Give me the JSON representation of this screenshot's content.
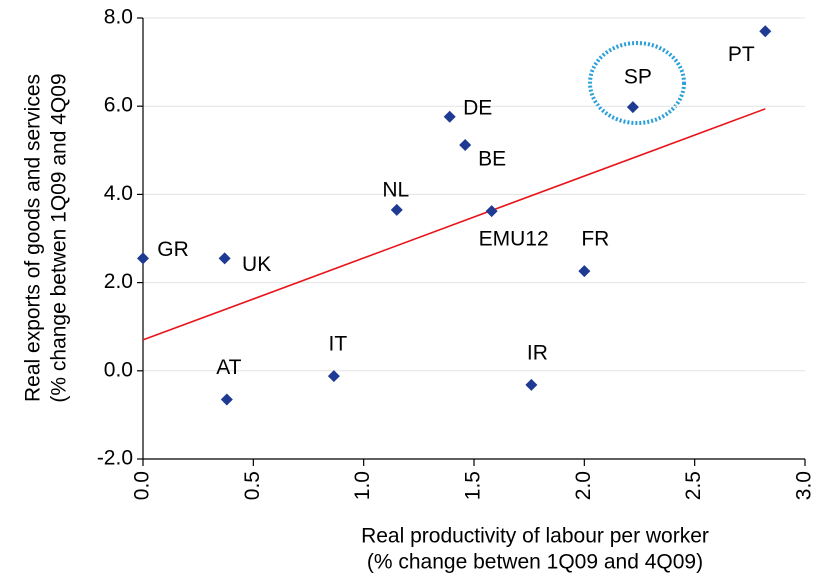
{
  "chart_data": {
    "type": "scatter",
    "x_label": [
      "Real productivity of labour per worker",
      "(% change betwen 1Q09 and 4Q09)"
    ],
    "y_label": [
      "Real exports of goods and services",
      "(% change betwen 1Q09 and 4Q09"
    ],
    "labels": [
      "GR",
      "UK",
      "AT",
      "IT",
      "NL",
      "DE",
      "BE",
      "EMU12",
      "IR",
      "FR",
      "SP",
      "PT"
    ],
    "x": [
      0.0,
      0.37,
      0.38,
      0.865,
      1.15,
      1.39,
      1.46,
      1.58,
      1.76,
      2.0,
      2.22,
      2.82
    ],
    "y": [
      2.55,
      2.55,
      -0.65,
      -0.12,
      3.65,
      5.76,
      5.12,
      3.62,
      -0.32,
      2.26,
      5.98,
      7.7
    ],
    "color": "#1f3a93",
    "trend_line": {
      "x": [
        0.0,
        2.82
      ],
      "y": [
        0.7,
        5.94
      ],
      "color": "#e8141a"
    },
    "xlim": [
      0,
      3
    ],
    "ylim": [
      -2,
      8
    ],
    "xticks": [
      {
        "value": 0,
        "label": "0.0"
      },
      {
        "value": 0.5,
        "label": "0.5"
      },
      {
        "value": 1,
        "label": "1.0"
      },
      1.5,
      {
        "value": 2,
        "label": "2.0"
      },
      2.5,
      {
        "value": 3,
        "label": "3.0"
      }
    ],
    "yticks": [
      {
        "value": -2,
        "label": "-2.0"
      },
      {
        "value": 0,
        "label": "0.0"
      },
      {
        "value": 2,
        "label": "2.0"
      },
      {
        "value": 4,
        "label": "4.0"
      },
      {
        "value": 6,
        "label": "6.0"
      },
      {
        "value": 8,
        "label": "8.0"
      }
    ],
    "grid": true
  }
}
